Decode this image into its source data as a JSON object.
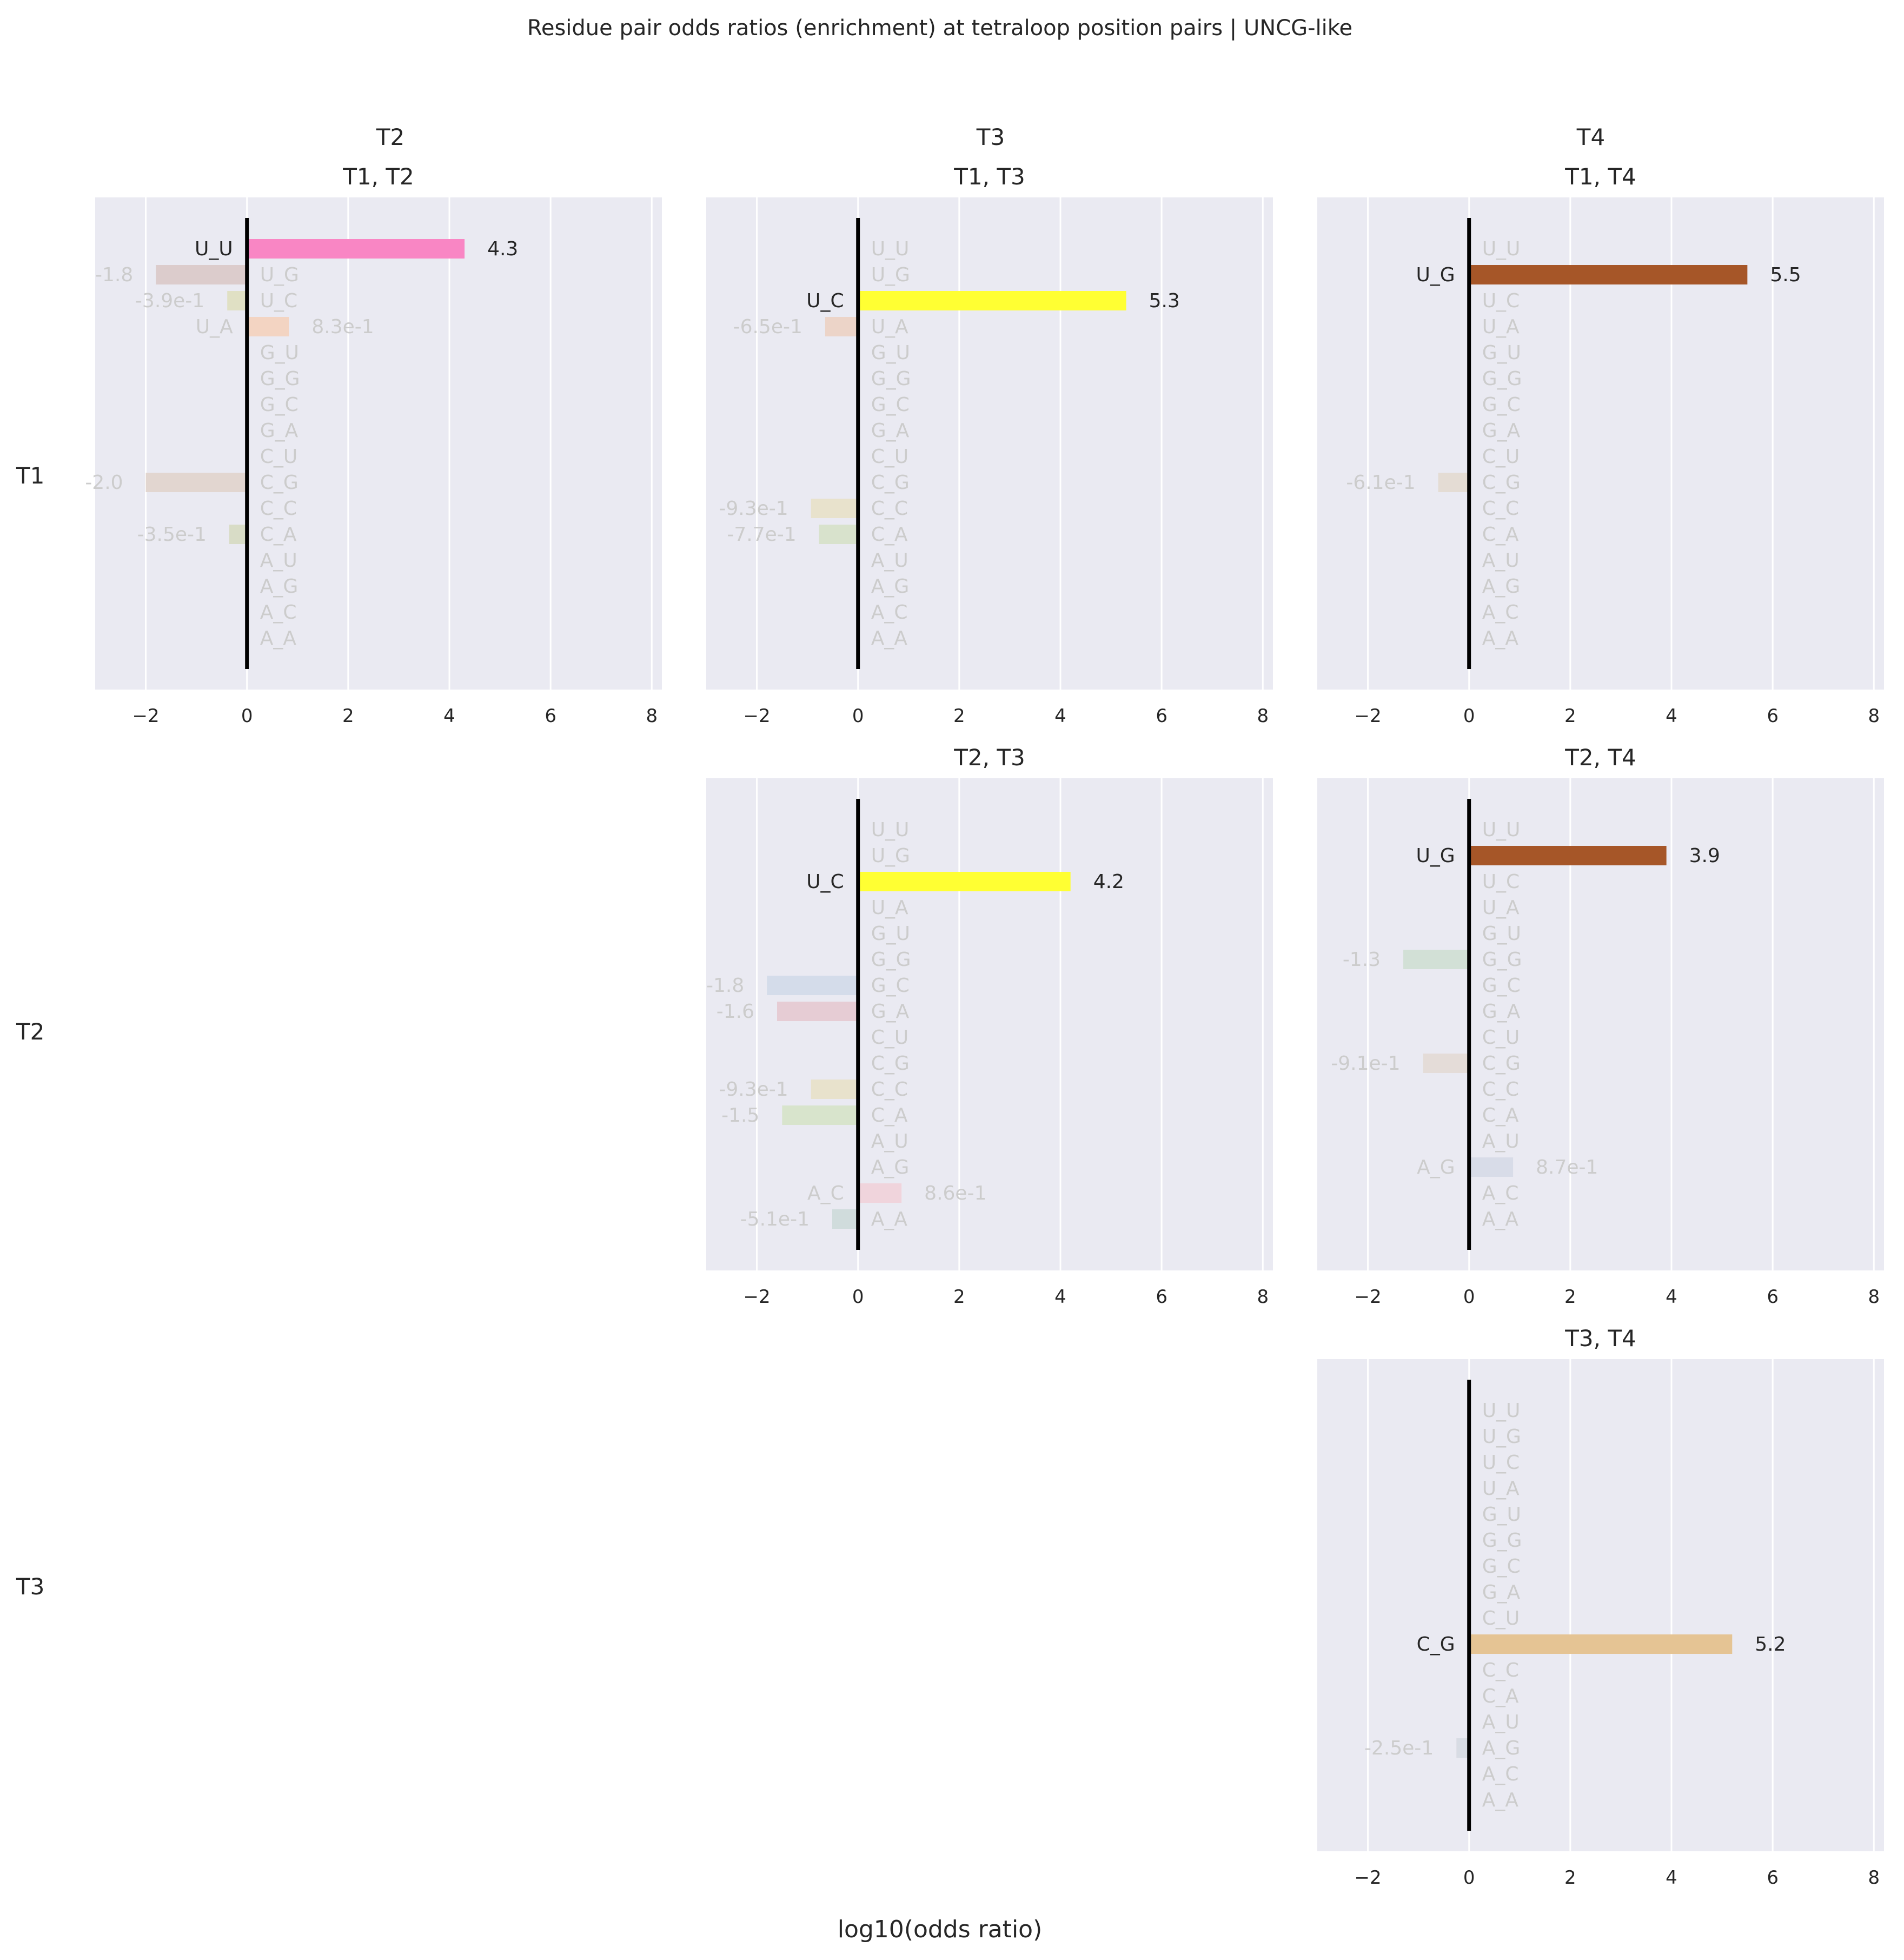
{
  "figure": {
    "title": "Residue pair odds ratios (enrichment) at tetraloop position pairs | UNCG-like",
    "xlabel": "log10(odds ratio)",
    "column_headers": [
      "T2",
      "T3",
      "T4"
    ],
    "row_headers": [
      "T1",
      "T2",
      "T3"
    ]
  },
  "chart_data": [
    {
      "type": "bar",
      "orientation": "horizontal",
      "title": "T1, T2",
      "row": 0,
      "col": 0,
      "xlim": [
        -3,
        8.2
      ],
      "xticks": [
        -2,
        0,
        2,
        4,
        6,
        8
      ],
      "categories": [
        "U_U",
        "U_G",
        "U_C",
        "U_A",
        "G_U",
        "G_G",
        "G_C",
        "G_A",
        "C_U",
        "C_G",
        "C_C",
        "C_A",
        "A_U",
        "A_G",
        "A_C",
        "A_A"
      ],
      "values": [
        4.3,
        -1.8,
        -0.39,
        0.83,
        null,
        null,
        null,
        null,
        null,
        -2.0,
        null,
        -0.35,
        null,
        null,
        null,
        null
      ],
      "value_labels": [
        "4.3",
        "-1.8",
        "-3.9e-1",
        "8.3e-1",
        "",
        "",
        "",
        "",
        "",
        "-2.0",
        "",
        "-3.5e-1",
        "",
        "",
        "",
        ""
      ],
      "colors": [
        "#f986c4",
        "#dccccc",
        "#e0e0c4",
        "#f3d4c2",
        "",
        "",
        "",
        "",
        "",
        "#e2d6d0",
        "",
        "#d8dcc6",
        "",
        "",
        "",
        ""
      ],
      "highlight": "U_U"
    },
    {
      "type": "bar",
      "orientation": "horizontal",
      "title": "T1, T3",
      "row": 0,
      "col": 1,
      "xlim": [
        -3,
        8.2
      ],
      "xticks": [
        -2,
        0,
        2,
        4,
        6,
        8
      ],
      "categories": [
        "U_U",
        "U_G",
        "U_C",
        "U_A",
        "G_U",
        "G_G",
        "G_C",
        "G_A",
        "C_U",
        "C_G",
        "C_C",
        "C_A",
        "A_U",
        "A_G",
        "A_C",
        "A_A"
      ],
      "values": [
        null,
        null,
        5.3,
        -0.65,
        null,
        null,
        null,
        null,
        null,
        null,
        -0.93,
        -0.77,
        null,
        null,
        null,
        null
      ],
      "value_labels": [
        "",
        "",
        "5.3",
        "-6.5e-1",
        "",
        "",
        "",
        "",
        "",
        "",
        "-9.3e-1",
        "-7.7e-1",
        "",
        "",
        "",
        ""
      ],
      "colors": [
        "",
        "",
        "#ffff33",
        "#ecd4c8",
        "",
        "",
        "",
        "",
        "",
        "",
        "#e8e2cc",
        "#d8e2cc",
        "",
        "",
        "",
        ""
      ],
      "highlight": "U_C"
    },
    {
      "type": "bar",
      "orientation": "horizontal",
      "title": "T1, T4",
      "row": 0,
      "col": 2,
      "xlim": [
        -3,
        8.2
      ],
      "xticks": [
        -2,
        0,
        2,
        4,
        6,
        8
      ],
      "categories": [
        "U_U",
        "U_G",
        "U_C",
        "U_A",
        "G_U",
        "G_G",
        "G_C",
        "G_A",
        "C_U",
        "C_G",
        "C_C",
        "C_A",
        "A_U",
        "A_G",
        "A_C",
        "A_A"
      ],
      "values": [
        null,
        5.5,
        null,
        null,
        null,
        null,
        null,
        null,
        null,
        -0.61,
        null,
        null,
        null,
        null,
        null,
        null
      ],
      "value_labels": [
        "",
        "5.5",
        "",
        "",
        "",
        "",
        "",
        "",
        "",
        "-6.1e-1",
        "",
        "",
        "",
        "",
        "",
        ""
      ],
      "colors": [
        "",
        "#a65628",
        "",
        "",
        "",
        "",
        "",
        "",
        "",
        "#e4dcd4",
        "",
        "",
        "",
        "",
        "",
        ""
      ],
      "highlight": "U_G"
    },
    {
      "type": "bar",
      "orientation": "horizontal",
      "title": "T2, T3",
      "row": 1,
      "col": 1,
      "xlim": [
        -3,
        8.2
      ],
      "xticks": [
        -2,
        0,
        2,
        4,
        6,
        8
      ],
      "categories": [
        "U_U",
        "U_G",
        "U_C",
        "U_A",
        "G_U",
        "G_G",
        "G_C",
        "G_A",
        "C_U",
        "C_G",
        "C_C",
        "C_A",
        "A_U",
        "A_G",
        "A_C",
        "A_A"
      ],
      "values": [
        null,
        null,
        4.2,
        null,
        null,
        null,
        -1.8,
        -1.6,
        null,
        null,
        -0.93,
        -1.5,
        null,
        null,
        0.86,
        -0.51
      ],
      "value_labels": [
        "",
        "",
        "4.2",
        "",
        "",
        "",
        "-1.8",
        "-1.6",
        "",
        "",
        "-9.3e-1",
        "-1.5",
        "",
        "",
        "8.6e-1",
        "-5.1e-1"
      ],
      "colors": [
        "",
        "",
        "#ffff33",
        "",
        "",
        "",
        "#d4dcea",
        "#e6ccd4",
        "",
        "",
        "#e8e2cc",
        "#d8e4cc",
        "",
        "",
        "#f0d4dc",
        "#d0dcdc"
      ],
      "highlight": "U_C"
    },
    {
      "type": "bar",
      "orientation": "horizontal",
      "title": "T2, T4",
      "row": 1,
      "col": 2,
      "xlim": [
        -3,
        8.2
      ],
      "xticks": [
        -2,
        0,
        2,
        4,
        6,
        8
      ],
      "categories": [
        "U_U",
        "U_G",
        "U_C",
        "U_A",
        "G_U",
        "G_G",
        "G_C",
        "G_A",
        "C_U",
        "C_G",
        "C_C",
        "C_A",
        "A_U",
        "A_G",
        "A_C",
        "A_A"
      ],
      "values": [
        null,
        3.9,
        null,
        null,
        null,
        -1.3,
        null,
        null,
        null,
        -0.91,
        null,
        null,
        null,
        0.87,
        null,
        null
      ],
      "value_labels": [
        "",
        "3.9",
        "",
        "",
        "",
        "-1.3",
        "",
        "",
        "",
        "-9.1e-1",
        "",
        "",
        "",
        "8.7e-1",
        "",
        ""
      ],
      "colors": [
        "",
        "#a65628",
        "",
        "",
        "",
        "#d2e0d6",
        "",
        "",
        "",
        "#e4dcd8",
        "",
        "",
        "",
        "#d8dce8",
        "",
        ""
      ],
      "highlight": "U_G"
    },
    {
      "type": "bar",
      "orientation": "horizontal",
      "title": "T3, T4",
      "row": 2,
      "col": 2,
      "xlim": [
        -3,
        8.2
      ],
      "xticks": [
        -2,
        0,
        2,
        4,
        6,
        8
      ],
      "categories": [
        "U_U",
        "U_G",
        "U_C",
        "U_A",
        "G_U",
        "G_G",
        "G_C",
        "G_A",
        "C_U",
        "C_G",
        "C_C",
        "C_A",
        "A_U",
        "A_G",
        "A_C",
        "A_A"
      ],
      "values": [
        null,
        null,
        null,
        null,
        null,
        null,
        null,
        null,
        null,
        5.2,
        null,
        null,
        null,
        -0.25,
        null,
        null
      ],
      "value_labels": [
        "",
        "",
        "",
        "",
        "",
        "",
        "",
        "",
        "",
        "5.2",
        "",
        "",
        "",
        "-2.5e-1",
        "",
        ""
      ],
      "colors": [
        "",
        "",
        "",
        "",
        "",
        "",
        "",
        "",
        "",
        "#e5c494",
        "",
        "",
        "",
        "#d8dce4",
        "",
        ""
      ],
      "highlight": "C_G"
    }
  ]
}
